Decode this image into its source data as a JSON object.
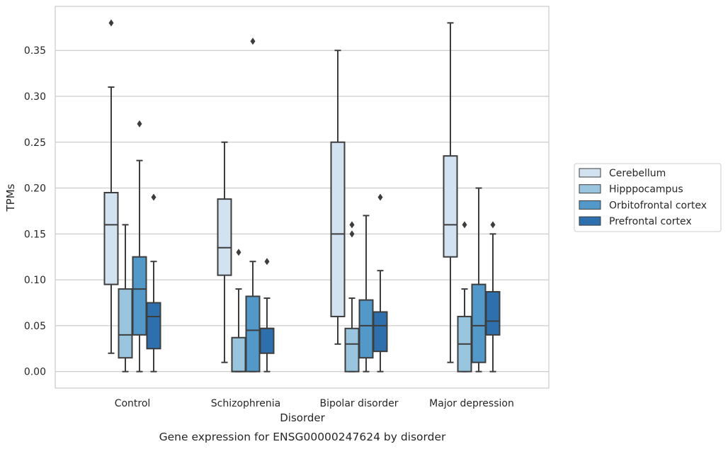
{
  "chart_data": {
    "type": "box",
    "caption": "Gene expression for ENSG00000247624 by disorder",
    "xlabel": "Disorder",
    "ylabel": "TPMs",
    "ylim": [
      -0.018,
      0.398
    ],
    "yticks": [
      0.0,
      0.05,
      0.1,
      0.15,
      0.2,
      0.25,
      0.3,
      0.35
    ],
    "ytick_labels": [
      "0.00",
      "0.05",
      "0.10",
      "0.15",
      "0.20",
      "0.25",
      "0.30",
      "0.35"
    ],
    "grid": "horizontal",
    "legend_position": "right",
    "categories": [
      "Control",
      "Schizophrenia",
      "Bipolar disorder",
      "Major depression"
    ],
    "series": [
      {
        "name": "Cerebellum",
        "color": "#d3e2f0",
        "boxes": [
          {
            "whislo": 0.02,
            "q1": 0.095,
            "med": 0.16,
            "q3": 0.195,
            "whishi": 0.31,
            "fliers": [
              0.38
            ]
          },
          {
            "whislo": 0.01,
            "q1": 0.105,
            "med": 0.135,
            "q3": 0.188,
            "whishi": 0.25,
            "fliers": []
          },
          {
            "whislo": 0.03,
            "q1": 0.06,
            "med": 0.15,
            "q3": 0.25,
            "whishi": 0.35,
            "fliers": []
          },
          {
            "whislo": 0.01,
            "q1": 0.125,
            "med": 0.16,
            "q3": 0.235,
            "whishi": 0.38,
            "fliers": []
          }
        ]
      },
      {
        "name": "Hipppocampus",
        "color": "#9ac5de",
        "boxes": [
          {
            "whislo": 0.0,
            "q1": 0.015,
            "med": 0.04,
            "q3": 0.09,
            "whishi": 0.16,
            "fliers": []
          },
          {
            "whislo": 0.0,
            "q1": 0.0,
            "med": 0.0,
            "q3": 0.037,
            "whishi": 0.09,
            "fliers": [
              0.13
            ]
          },
          {
            "whislo": 0.0,
            "q1": 0.0,
            "med": 0.03,
            "q3": 0.047,
            "whishi": 0.08,
            "fliers": [
              0.15,
              0.16
            ]
          },
          {
            "whislo": 0.0,
            "q1": 0.0,
            "med": 0.03,
            "q3": 0.06,
            "whishi": 0.09,
            "fliers": [
              0.16
            ]
          }
        ]
      },
      {
        "name": "Orbitofrontal cortex",
        "color": "#5298c8",
        "boxes": [
          {
            "whislo": 0.0,
            "q1": 0.04,
            "med": 0.09,
            "q3": 0.125,
            "whishi": 0.23,
            "fliers": [
              0.27
            ]
          },
          {
            "whislo": 0.0,
            "q1": 0.0,
            "med": 0.045,
            "q3": 0.082,
            "whishi": 0.12,
            "fliers": [
              0.36
            ]
          },
          {
            "whislo": 0.0,
            "q1": 0.015,
            "med": 0.05,
            "q3": 0.078,
            "whishi": 0.17,
            "fliers": []
          },
          {
            "whislo": 0.0,
            "q1": 0.01,
            "med": 0.05,
            "q3": 0.095,
            "whishi": 0.2,
            "fliers": []
          }
        ]
      },
      {
        "name": "Prefrontal cortex",
        "color": "#2e6fad",
        "boxes": [
          {
            "whislo": 0.0,
            "q1": 0.025,
            "med": 0.06,
            "q3": 0.075,
            "whishi": 0.12,
            "fliers": [
              0.19
            ]
          },
          {
            "whislo": 0.0,
            "q1": 0.02,
            "med": 0.047,
            "q3": 0.047,
            "whishi": 0.08,
            "fliers": [
              0.12
            ]
          },
          {
            "whislo": 0.0,
            "q1": 0.022,
            "med": 0.05,
            "q3": 0.065,
            "whishi": 0.11,
            "fliers": [
              0.19
            ]
          },
          {
            "whislo": 0.0,
            "q1": 0.04,
            "med": 0.055,
            "q3": 0.087,
            "whishi": 0.15,
            "fliers": [
              0.16
            ]
          }
        ]
      }
    ]
  },
  "colors": {
    "grid": "#cccccc",
    "spine": "#cccccc",
    "line": "#3d3d3d"
  }
}
